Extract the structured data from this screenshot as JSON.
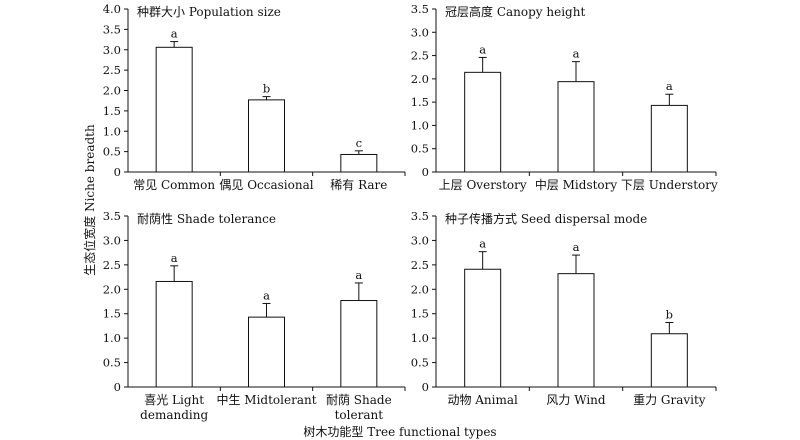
{
  "figure": {
    "ylabel": "生态位宽度 Niche breadth",
    "xlabel": "树木功能型 Tree functional types"
  },
  "chart_data": [
    {
      "type": "bar",
      "title": "种群大小 Population size",
      "categories": [
        [
          "常见 Common"
        ],
        [
          "偶见 Occasional"
        ],
        [
          "稀有 Rare"
        ]
      ],
      "values": [
        3.06,
        1.77,
        0.43
      ],
      "errors": [
        0.14,
        0.08,
        0.09
      ],
      "letters": [
        "a",
        "b",
        "c"
      ],
      "ylim": [
        0,
        4.0
      ],
      "yticks": [
        "0",
        "0.5",
        "1.0",
        "1.5",
        "2.0",
        "2.5",
        "3.0",
        "3.5",
        "4.0"
      ]
    },
    {
      "type": "bar",
      "title": "冠层高度 Canopy height",
      "categories": [
        [
          "上层 Overstory"
        ],
        [
          "中层 Midstory"
        ],
        [
          "下层 Understory"
        ]
      ],
      "values": [
        2.14,
        1.94,
        1.43
      ],
      "errors": [
        0.32,
        0.43,
        0.24
      ],
      "letters": [
        "a",
        "a",
        "a"
      ],
      "ylim": [
        0,
        3.5
      ],
      "yticks": [
        "0",
        "0.5",
        "1.0",
        "1.5",
        "2.0",
        "2.5",
        "3.0",
        "3.5"
      ]
    },
    {
      "type": "bar",
      "title": "耐荫性 Shade tolerance",
      "categories": [
        [
          "喜光 Light",
          "demanding"
        ],
        [
          "中生 Midtolerant"
        ],
        [
          "耐荫 Shade",
          "tolerant"
        ]
      ],
      "values": [
        2.16,
        1.43,
        1.77
      ],
      "errors": [
        0.32,
        0.28,
        0.36
      ],
      "letters": [
        "a",
        "a",
        "a"
      ],
      "ylim": [
        0,
        3.5
      ],
      "yticks": [
        "0",
        "0.5",
        "1.0",
        "1.5",
        "2.0",
        "2.5",
        "3.0",
        "3.5"
      ]
    },
    {
      "type": "bar",
      "title": "种子传播方式 Seed dispersal mode",
      "categories": [
        [
          "动物 Animal"
        ],
        [
          "风力 Wind"
        ],
        [
          "重力 Gravity"
        ]
      ],
      "values": [
        2.41,
        2.32,
        1.09
      ],
      "errors": [
        0.36,
        0.38,
        0.23
      ],
      "letters": [
        "a",
        "a",
        "b"
      ],
      "ylim": [
        0,
        3.5
      ],
      "yticks": [
        "0",
        "0.5",
        "1.0",
        "1.5",
        "2.0",
        "2.5",
        "3.0",
        "3.5"
      ]
    }
  ]
}
